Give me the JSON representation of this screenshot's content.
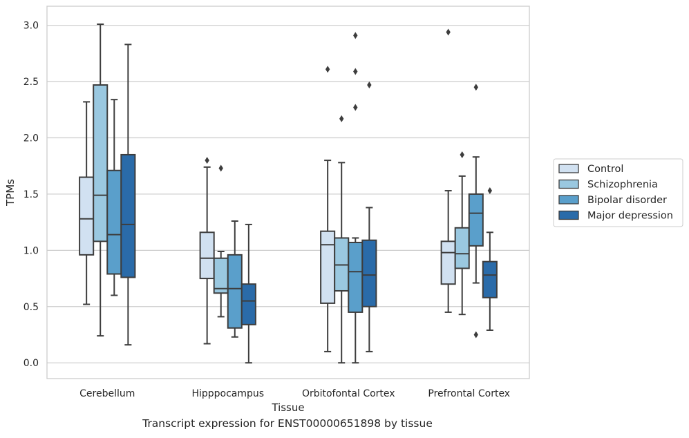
{
  "caption": "Transcript expression for ENST00000651898 by tissue",
  "chart_data": {
    "type": "box",
    "xlabel": "Tissue",
    "ylabel": "TPMs",
    "ylim": [
      -0.14,
      3.17
    ],
    "yticks": [
      0.0,
      0.5,
      1.0,
      1.5,
      2.0,
      2.5,
      3.0
    ],
    "ytick_labels": [
      "0.0",
      "0.5",
      "1.0",
      "1.5",
      "2.0",
      "2.5",
      "3.0"
    ],
    "grid": "horizontal",
    "legend_position": "right",
    "categories": [
      "Cerebellum",
      "Hipppocampus",
      "Orbitofontal Cortex",
      "Prefrontal Cortex"
    ],
    "series": [
      {
        "name": "Control",
        "color": "#d1e1f1",
        "boxes": [
          {
            "whisker_low": 0.52,
            "q1": 0.96,
            "median": 1.28,
            "q3": 1.65,
            "whisker_high": 2.32,
            "outliers": []
          },
          {
            "whisker_low": 0.17,
            "q1": 0.75,
            "median": 0.93,
            "q3": 1.16,
            "whisker_high": 1.74,
            "outliers": [
              1.8
            ]
          },
          {
            "whisker_low": 0.1,
            "q1": 0.53,
            "median": 1.05,
            "q3": 1.17,
            "whisker_high": 1.8,
            "outliers": [
              2.61
            ]
          },
          {
            "whisker_low": 0.45,
            "q1": 0.7,
            "median": 0.98,
            "q3": 1.08,
            "whisker_high": 1.53,
            "outliers": [
              2.94
            ]
          }
        ]
      },
      {
        "name": "Schizophrenia",
        "color": "#9ac8e0",
        "boxes": [
          {
            "whisker_low": 0.24,
            "q1": 1.08,
            "median": 1.49,
            "q3": 2.47,
            "whisker_high": 3.01,
            "outliers": []
          },
          {
            "whisker_low": 0.41,
            "q1": 0.62,
            "median": 0.66,
            "q3": 0.93,
            "whisker_high": 0.99,
            "outliers": [
              1.73
            ]
          },
          {
            "whisker_low": 0.0,
            "q1": 0.64,
            "median": 0.87,
            "q3": 1.11,
            "whisker_high": 1.78,
            "outliers": [
              2.17
            ]
          },
          {
            "whisker_low": 0.43,
            "q1": 0.84,
            "median": 0.97,
            "q3": 1.2,
            "whisker_high": 1.66,
            "outliers": [
              1.85
            ]
          }
        ]
      },
      {
        "name": "Bipolar disorder",
        "color": "#5a9fcb",
        "boxes": [
          {
            "whisker_low": 0.6,
            "q1": 0.79,
            "median": 1.14,
            "q3": 1.71,
            "whisker_high": 2.34,
            "outliers": []
          },
          {
            "whisker_low": 0.23,
            "q1": 0.31,
            "median": 0.66,
            "q3": 0.96,
            "whisker_high": 1.26,
            "outliers": []
          },
          {
            "whisker_low": 0.0,
            "q1": 0.45,
            "median": 0.81,
            "q3": 1.07,
            "whisker_high": 1.11,
            "outliers": [
              2.27,
              2.59,
              2.91
            ]
          },
          {
            "whisker_low": 0.71,
            "q1": 1.04,
            "median": 1.33,
            "q3": 1.5,
            "whisker_high": 1.83,
            "outliers": [
              2.45,
              0.25
            ]
          }
        ]
      },
      {
        "name": "Major depression",
        "color": "#2a6ba9",
        "boxes": [
          {
            "whisker_low": 0.16,
            "q1": 0.76,
            "median": 1.23,
            "q3": 1.85,
            "whisker_high": 2.83,
            "outliers": []
          },
          {
            "whisker_low": 0.0,
            "q1": 0.34,
            "median": 0.55,
            "q3": 0.7,
            "whisker_high": 1.23,
            "outliers": []
          },
          {
            "whisker_low": 0.1,
            "q1": 0.5,
            "median": 0.78,
            "q3": 1.09,
            "whisker_high": 1.38,
            "outliers": [
              2.47
            ]
          },
          {
            "whisker_low": 0.29,
            "q1": 0.58,
            "median": 0.78,
            "q3": 0.9,
            "whisker_high": 1.16,
            "outliers": [
              1.53
            ]
          }
        ]
      }
    ]
  }
}
